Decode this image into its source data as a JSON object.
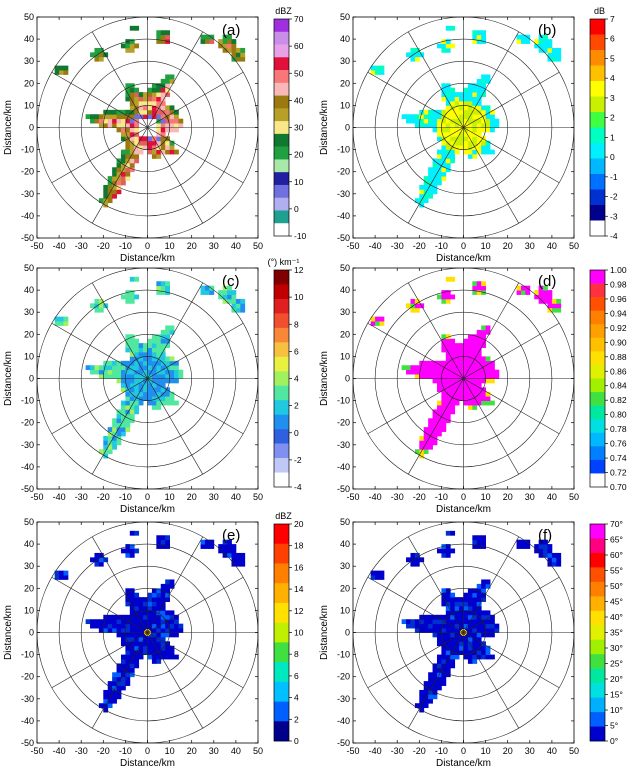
{
  "figure": {
    "panels": [
      {
        "label": "(a)",
        "unit": "dBZ",
        "ticks": [
          "70",
          "60",
          "50",
          "40",
          "30",
          "20",
          "10",
          "0",
          "-10"
        ],
        "colors": [
          "#9f30e0",
          "#c98ee8",
          "#e8a0e8",
          "#e0103a",
          "#f87878",
          "#f8b8b8",
          "#9a7a10",
          "#b8a028",
          "#f8e888",
          "#107830",
          "#20a040",
          "#a8e8a8",
          "#2020a0",
          "#7070e0",
          "#b0b0f0",
          "#20a090",
          "#ffffff"
        ],
        "fill": "reflectivity"
      },
      {
        "label": "(b)",
        "unit": "dB",
        "ticks": [
          "7",
          "6",
          "5",
          "4",
          "3",
          "2",
          "1",
          "0",
          "-1",
          "-2",
          "-3",
          "-4"
        ],
        "colors": [
          "#ff0000",
          "#ff4800",
          "#ff8c00",
          "#ffc000",
          "#ffff00",
          "#c8f000",
          "#40ff40",
          "#00ffc0",
          "#00f0ff",
          "#00b8ff",
          "#0070ff",
          "#0030d0",
          "#00008c",
          "#ffffff"
        ],
        "fill": "zdr"
      },
      {
        "label": "(c)",
        "unit": "(°) km⁻¹",
        "ticks": [
          "12",
          "10",
          "8",
          "6",
          "4",
          "2",
          "0",
          "-2",
          "-4"
        ],
        "colors": [
          "#800000",
          "#c00000",
          "#e02020",
          "#f05030",
          "#f88838",
          "#f8c040",
          "#e8f040",
          "#a0f060",
          "#50e8a0",
          "#20c8e0",
          "#2090f0",
          "#3060e0",
          "#8090f0",
          "#c0c8f8",
          "#ffffff"
        ],
        "fill": "kdp"
      },
      {
        "label": "(d)",
        "unit": "",
        "ticks": [
          "1.00",
          "0.98",
          "0.96",
          "0.94",
          "0.92",
          "0.90",
          "0.88",
          "0.86",
          "0.84",
          "0.82",
          "0.80",
          "0.78",
          "0.76",
          "0.74",
          "0.72",
          "0.70"
        ],
        "colors": [
          "#ff00ff",
          "#ff3040",
          "#ff5000",
          "#ff8000",
          "#ffa000",
          "#ffc000",
          "#ffe000",
          "#e0f000",
          "#a0f000",
          "#40e040",
          "#00e8a0",
          "#00e0e0",
          "#00b8ff",
          "#0080ff",
          "#0040ff",
          "#ffffff"
        ],
        "fill": "rhohv"
      },
      {
        "label": "(e)",
        "unit": "dBZ",
        "ticks": [
          "20",
          "18",
          "16",
          "14",
          "12",
          "10",
          "8",
          "6",
          "4",
          "2",
          "0"
        ],
        "colors": [
          "#ff0000",
          "#ff4000",
          "#ff8000",
          "#ffb000",
          "#ffe000",
          "#c0f000",
          "#40e040",
          "#00e8c0",
          "#00c0ff",
          "#0060ff",
          "#00008c"
        ],
        "fill": "blue"
      },
      {
        "label": "(f)",
        "unit": "",
        "ticks": [
          "70°",
          "65°",
          "60°",
          "55°",
          "50°",
          "45°",
          "40°",
          "35°",
          "30°",
          "25°",
          "20°",
          "15°",
          "10°",
          "5°",
          "0°"
        ],
        "colors": [
          "#ff00ff",
          "#ff0080",
          "#ff0000",
          "#ff5000",
          "#ff8000",
          "#ffb000",
          "#ffe000",
          "#e0f000",
          "#a0f000",
          "#40e040",
          "#00e8a0",
          "#00e0e0",
          "#00b0ff",
          "#0060ff",
          "#0000cc"
        ],
        "fill": "blue"
      }
    ],
    "x_ticks": [
      "-50",
      "-40",
      "-30",
      "-20",
      "-10",
      "0",
      "10",
      "20",
      "30",
      "40",
      "50"
    ],
    "y_ticks": [
      "50",
      "40",
      "30",
      "20",
      "10",
      "0",
      "-10",
      "-20",
      "-30",
      "-40",
      "-50"
    ],
    "xlabel": "Distance/km",
    "ylabel": "Distance/km"
  },
  "chart_data": [
    {
      "type": "heatmap",
      "title": "(a)",
      "xlabel": "Distance/km",
      "ylabel": "Distance/km",
      "xlim": [
        -50,
        50
      ],
      "ylim": [
        -50,
        50
      ],
      "colorbar_label": "dBZ",
      "colorbar_range": [
        -10,
        70
      ],
      "range_rings_km": [
        10,
        20,
        30,
        40,
        50
      ],
      "radial_spacing_deg": 30
    },
    {
      "type": "heatmap",
      "title": "(b)",
      "xlabel": "Distance/km",
      "ylabel": "Distance/km",
      "xlim": [
        -50,
        50
      ],
      "ylim": [
        -50,
        50
      ],
      "colorbar_label": "dB",
      "colorbar_range": [
        -4,
        7
      ],
      "range_rings_km": [
        10,
        20,
        30,
        40,
        50
      ],
      "radial_spacing_deg": 30
    },
    {
      "type": "heatmap",
      "title": "(c)",
      "xlabel": "Distance/km",
      "ylabel": "Distance/km",
      "xlim": [
        -50,
        50
      ],
      "ylim": [
        -50,
        50
      ],
      "colorbar_label": "(°) km⁻¹",
      "colorbar_range": [
        -4,
        12
      ],
      "range_rings_km": [
        10,
        20,
        30,
        40,
        50
      ],
      "radial_spacing_deg": 30
    },
    {
      "type": "heatmap",
      "title": "(d)",
      "xlabel": "Distance/km",
      "ylabel": "Distance/km",
      "xlim": [
        -50,
        50
      ],
      "ylim": [
        -50,
        50
      ],
      "colorbar_range": [
        0.7,
        1.0
      ],
      "range_rings_km": [
        10,
        20,
        30,
        40,
        50
      ],
      "radial_spacing_deg": 30
    },
    {
      "type": "heatmap",
      "title": "(e)",
      "xlabel": "Distance/km",
      "ylabel": "Distance/km",
      "xlim": [
        -50,
        50
      ],
      "ylim": [
        -50,
        50
      ],
      "colorbar_label": "dBZ",
      "colorbar_range": [
        0,
        20
      ],
      "range_rings_km": [
        10,
        20,
        30,
        40,
        50
      ],
      "radial_spacing_deg": 30
    },
    {
      "type": "heatmap",
      "title": "(f)",
      "xlabel": "Distance/km",
      "ylabel": "Distance/km",
      "xlim": [
        -50,
        50
      ],
      "ylim": [
        -50,
        50
      ],
      "colorbar_range": [
        0,
        70
      ],
      "range_rings_km": [
        10,
        20,
        30,
        40,
        50
      ],
      "radial_spacing_deg": 30
    }
  ]
}
